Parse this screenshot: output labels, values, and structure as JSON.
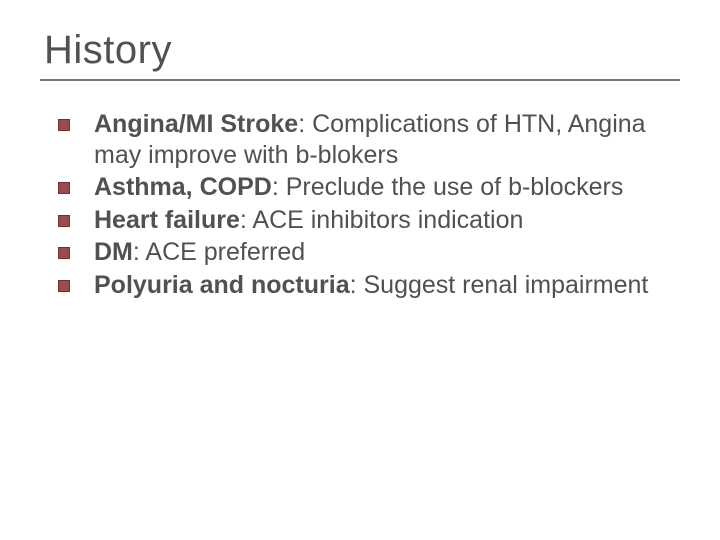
{
  "slide": {
    "title": "History",
    "title_fontsize": 40,
    "title_color": "#52514d",
    "rule_color": "#7a786d",
    "bullet_fill": "#9a4c4c",
    "bullet_border": "#6e3232",
    "body_fontsize": 25,
    "body_color": "#52514d",
    "background": "#ffffff",
    "items": [
      {
        "term": "Angina/MI Stroke",
        "desc": ": Complications of  HTN, Angina may improve with b-blokers"
      },
      {
        "term": "Asthma, COPD",
        "desc": ": Preclude the use of b-blockers"
      },
      {
        "term": "Heart failure",
        "desc": ": ACE inhibitors indication"
      },
      {
        "term": "DM",
        "desc": ": ACE preferred"
      },
      {
        "term": "Polyuria and nocturia",
        "desc": ":  Suggest renal impairment"
      }
    ]
  }
}
